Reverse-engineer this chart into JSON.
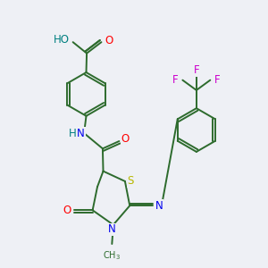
{
  "bg_color": "#eef0f5",
  "bond_color": "#2d6b2d",
  "bond_width": 1.4,
  "atom_colors": {
    "O": "#ff0000",
    "N": "#0000ee",
    "S": "#b8b800",
    "F": "#cc00cc",
    "H": "#008080",
    "C": "#2d6b2d"
  },
  "font_size": 8.5,
  "fig_size": [
    3.0,
    3.0
  ],
  "dpi": 100
}
